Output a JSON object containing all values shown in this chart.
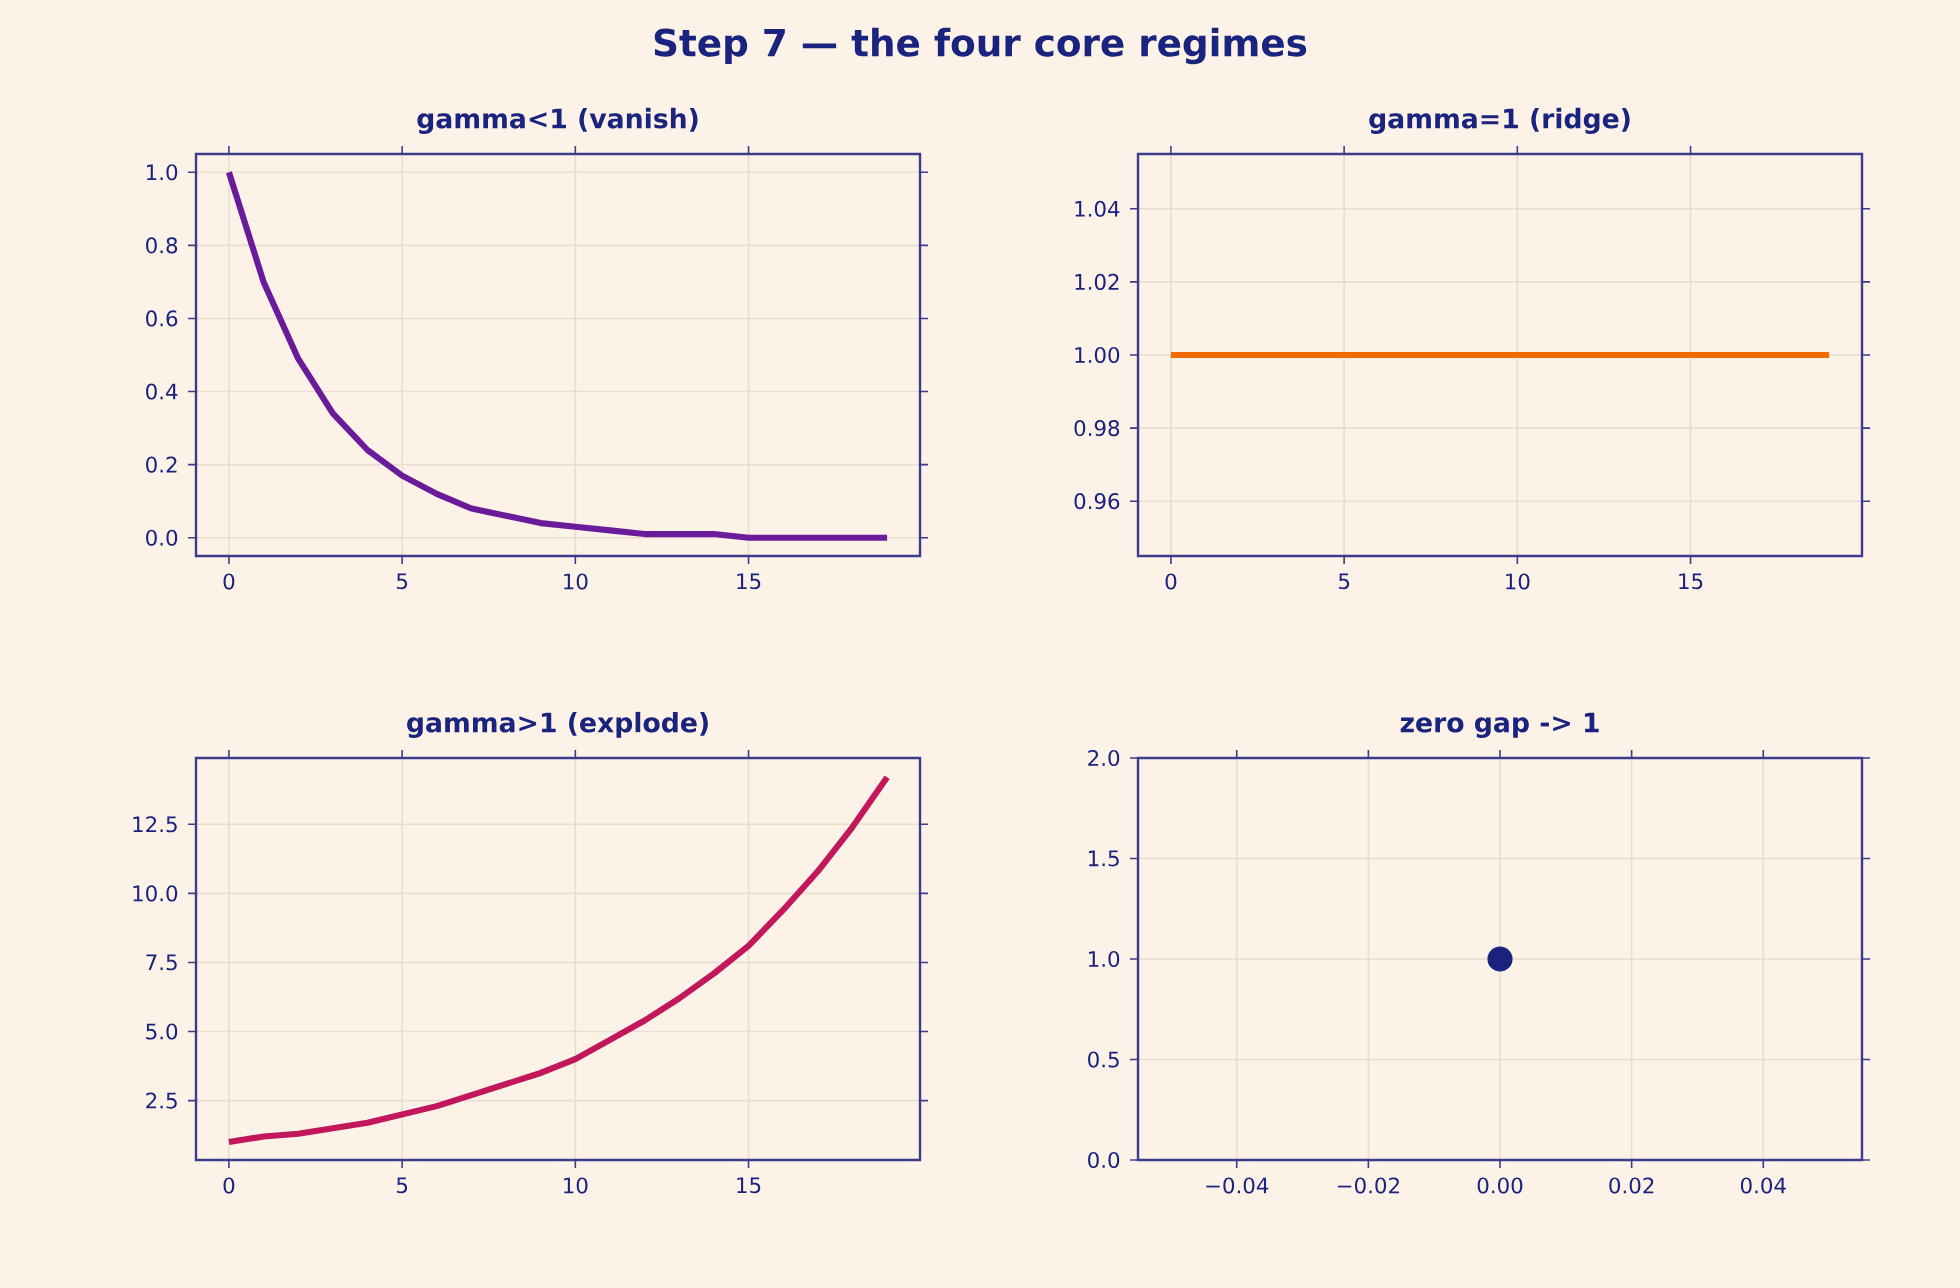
{
  "chart_data": [
    {
      "type": "line",
      "title": "gamma<1 (vanish)",
      "annotations": [
        "Step 7 — the four core regimes"
      ],
      "x": [
        0,
        1,
        2,
        3,
        4,
        5,
        6,
        7,
        8,
        9,
        10,
        11,
        12,
        13,
        14,
        15,
        16,
        17,
        18,
        19
      ],
      "series": [
        {
          "color": "#6a1b9a",
          "values": [
            1.0,
            0.7,
            0.49,
            0.34,
            0.24,
            0.17,
            0.12,
            0.08,
            0.06,
            0.04,
            0.03,
            0.02,
            0.01,
            0.01,
            0.01,
            0.0,
            0.0,
            0.0,
            0.0,
            0.0
          ]
        }
      ],
      "xlim": [
        -0.95,
        19.95
      ],
      "ylim": [
        -0.05,
        1.05
      ],
      "xticks": [
        0,
        5,
        10,
        15
      ],
      "yticks": [
        {
          "value": 0,
          "label": "0.0"
        },
        {
          "value": 0.2,
          "label": "0.2"
        },
        {
          "value": 0.4,
          "label": "0.4"
        },
        {
          "value": 0.6,
          "label": "0.6"
        },
        {
          "value": 0.8,
          "label": "0.8"
        },
        {
          "value": 1,
          "label": "1.0"
        }
      ],
      "grid": true,
      "marker": "none",
      "line_style": "solid"
    },
    {
      "type": "line",
      "title": "gamma=1 (ridge)",
      "x": [
        0,
        1,
        2,
        3,
        4,
        5,
        6,
        7,
        8,
        9,
        10,
        11,
        12,
        13,
        14,
        15,
        16,
        17,
        18,
        19
      ],
      "series": [
        {
          "color": "#ef6c00",
          "values": [
            1,
            1,
            1,
            1,
            1,
            1,
            1,
            1,
            1,
            1,
            1,
            1,
            1,
            1,
            1,
            1,
            1,
            1,
            1,
            1
          ]
        }
      ],
      "xlim": [
        -0.95,
        19.95
      ],
      "ylim": [
        0.945,
        1.055
      ],
      "xticks": [
        0,
        5,
        10,
        15
      ],
      "yticks": [
        0.96,
        0.98,
        {
          "value": 1,
          "label": "1.00"
        },
        1.02,
        1.04
      ],
      "grid": true,
      "marker": "none",
      "line_style": "solid"
    },
    {
      "type": "line",
      "title": "gamma>1 (explode)",
      "x": [
        0,
        1,
        2,
        3,
        4,
        5,
        6,
        7,
        8,
        9,
        10,
        11,
        12,
        13,
        14,
        15,
        16,
        17,
        18,
        19
      ],
      "series": [
        {
          "color": "#c2185b",
          "values": [
            1.0,
            1.2,
            1.3,
            1.5,
            1.7,
            2.0,
            2.3,
            2.7,
            3.1,
            3.5,
            4.0,
            4.7,
            5.4,
            6.2,
            7.1,
            8.1,
            9.4,
            10.8,
            12.4,
            14.2
          ]
        }
      ],
      "xlim": [
        -0.95,
        19.95
      ],
      "ylim": [
        0.35,
        14.9
      ],
      "xticks": [
        0,
        5,
        10,
        15
      ],
      "yticks": [
        2.5,
        {
          "value": 5,
          "label": "5.0"
        },
        7.5,
        {
          "value": 10,
          "label": "10.0"
        },
        12.5
      ],
      "grid": true,
      "marker": "none",
      "line_style": "solid"
    },
    {
      "type": "scatter",
      "title": "zero gap -> 1",
      "x": [
        0
      ],
      "series": [
        {
          "color": "#1a237e",
          "values": [
            1
          ]
        }
      ],
      "xlim": [
        -0.055,
        0.055
      ],
      "ylim": [
        0,
        2
      ],
      "xticks": [
        {
          "value": -0.04,
          "label": "−0.04"
        },
        {
          "value": -0.02,
          "label": "−0.02"
        },
        {
          "value": 0,
          "label": "0.00"
        },
        {
          "value": 0.02,
          "label": "0.02"
        },
        {
          "value": 0.04,
          "label": "0.04"
        }
      ],
      "yticks": [
        {
          "value": 0,
          "label": "0.0"
        },
        {
          "value": 0.5,
          "label": "0.5"
        },
        {
          "value": 1,
          "label": "1.0"
        },
        {
          "value": 1.5,
          "label": "1.5"
        },
        {
          "value": 2,
          "label": "2.0"
        }
      ],
      "grid": true,
      "marker": "circle"
    }
  ]
}
